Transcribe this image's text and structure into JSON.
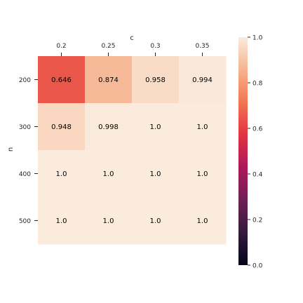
{
  "chart_data": {
    "type": "heatmap",
    "title": "",
    "xlabel": "c",
    "ylabel": "n",
    "x_categories": [
      "0.2",
      "0.25",
      "0.3",
      "0.35"
    ],
    "y_categories": [
      "200",
      "300",
      "400",
      "500"
    ],
    "values": [
      [
        0.646,
        0.874,
        0.958,
        0.994
      ],
      [
        0.948,
        0.998,
        1.0,
        1.0
      ],
      [
        1.0,
        1.0,
        1.0,
        1.0
      ],
      [
        1.0,
        1.0,
        1.0,
        1.0
      ]
    ],
    "cell_labels": [
      [
        "0.646",
        "0.874",
        "0.958",
        "0.994"
      ],
      [
        "0.948",
        "0.998",
        "1.0",
        "1.0"
      ],
      [
        "1.0",
        "1.0",
        "1.0",
        "1.0"
      ],
      [
        "1.0",
        "1.0",
        "1.0",
        "1.0"
      ]
    ],
    "x_axis_position": "top",
    "colorbar": {
      "position": "right",
      "vmin": 0.0,
      "vmax": 1.0,
      "ticks": [
        "0.0",
        "0.2",
        "0.4",
        "0.6",
        "0.8",
        "1.0"
      ],
      "tick_values": [
        0.0,
        0.2,
        0.4,
        0.6,
        0.8,
        1.0
      ],
      "colormap": "rocket",
      "colormap_stops": [
        "#03051a",
        "#35193e",
        "#701f57",
        "#ad1759",
        "#e13342",
        "#f37651",
        "#f6b48f",
        "#faebdd"
      ]
    },
    "grid": false
  }
}
